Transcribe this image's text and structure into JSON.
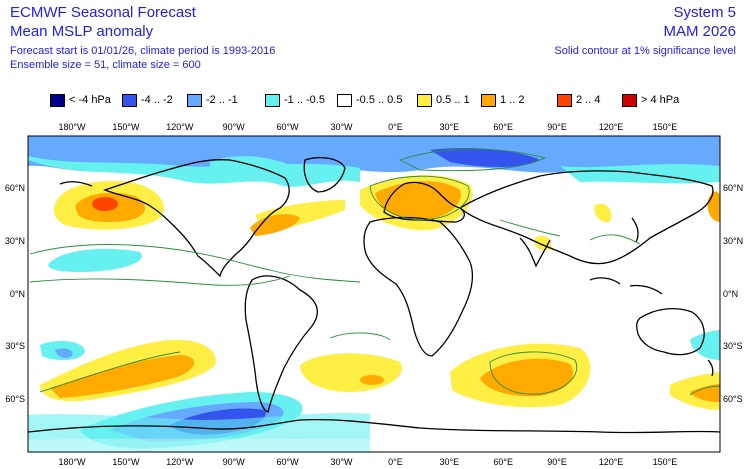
{
  "header": {
    "title_left": "ECMWF Seasonal Forecast",
    "subtitle_left": "Mean MSLP anomaly",
    "meta_line1": "Forecast start is 01/01/26, climate period is 1993-2016",
    "meta_line2": "Ensemble size = 51, climate size = 600",
    "title_right": "System 5",
    "subtitle_right": "MAM 2026",
    "note_right": "Solid contour at 1% significance level"
  },
  "legend": [
    {
      "label": "< -4 hPa",
      "color": "#00008b"
    },
    {
      "label": "-4 .. -2",
      "color": "#3355ee"
    },
    {
      "label": "-2 .. -1",
      "color": "#66aaff"
    },
    {
      "label": "-1 .. -0.5",
      "color": "#66f0f0"
    },
    {
      "label": "-0.5 .. 0.5",
      "color": "#ffffff"
    },
    {
      "label": "0.5 .. 1",
      "color": "#ffee44"
    },
    {
      "label": "1 .. 2",
      "color": "#ffaa00"
    },
    {
      "label": "2 .. 4",
      "color": "#ff4400"
    },
    {
      "label": "> 4 hPa",
      "color": "#cc0000"
    }
  ],
  "axes": {
    "lon_labels": [
      "180°W",
      "150°W",
      "120°W",
      "90°W",
      "60°W",
      "30°W",
      "0°E",
      "30°E",
      "60°E",
      "90°E",
      "120°E",
      "150°E"
    ],
    "lat_labels": [
      "60°N",
      "30°N",
      "0°N",
      "30°S",
      "60°S"
    ]
  }
}
